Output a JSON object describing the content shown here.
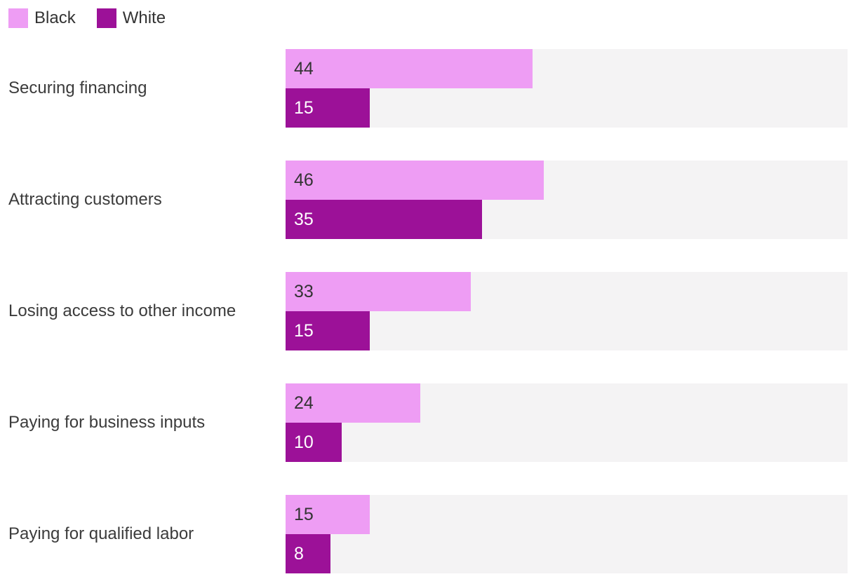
{
  "legend": {
    "position": "top-left",
    "items": [
      {
        "label": "Black",
        "color": "#ee9df4"
      },
      {
        "label": "White",
        "color": "#9c1198"
      }
    ]
  },
  "chart_data": {
    "type": "bar",
    "orientation": "horizontal",
    "title": "",
    "categories": [
      "Securing financing",
      "Attracting customers",
      "Losing access to other income",
      "Paying for business inputs",
      "Paying for qualified labor"
    ],
    "series": [
      {
        "name": "Black",
        "color": "#ee9df4",
        "values": [
          44,
          46,
          33,
          24,
          15
        ]
      },
      {
        "name": "White",
        "color": "#9c1198",
        "values": [
          15,
          35,
          15,
          10,
          8
        ]
      }
    ],
    "xlim": [
      0,
      100
    ],
    "grid": false,
    "track_color": "#f4f3f4",
    "value_labels": "inside-start",
    "legend_position": "top-left"
  },
  "colors": {
    "background": "#ffffff",
    "category_label_text": "#3b3b3b",
    "value_text_on_light": "#333333",
    "value_text_on_dark": "#ffffff"
  }
}
